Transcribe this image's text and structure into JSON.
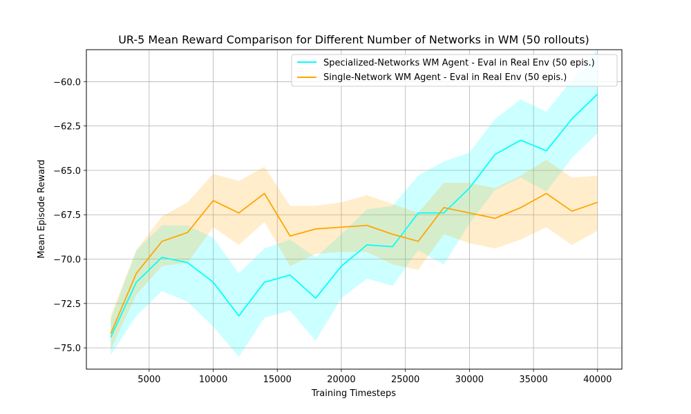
{
  "chart_data": {
    "type": "line",
    "title": "UR-5 Mean Reward Comparison for Different Number of Networks in WM (50 rollouts)",
    "xlabel": "Training Timesteps",
    "ylabel": "Mean Episode Reward",
    "xlim": [
      100,
      41900
    ],
    "ylim": [
      -76.2,
      -58.2
    ],
    "xticks": [
      5000,
      10000,
      15000,
      20000,
      25000,
      30000,
      35000,
      40000
    ],
    "yticks": [
      -75.0,
      -72.5,
      -70.0,
      -67.5,
      -65.0,
      -62.5,
      -60.0
    ],
    "grid": true,
    "legend_position": "top-right",
    "x": [
      2000,
      4000,
      6000,
      8000,
      10000,
      12000,
      14000,
      16000,
      18000,
      20000,
      22000,
      24000,
      26000,
      28000,
      30000,
      32000,
      34000,
      36000,
      38000,
      40000
    ],
    "series": [
      {
        "name": "Specialized-Networks WM Agent - Eval in Real Env (50 epis.)",
        "color": "#00ffff",
        "fill_color": "#00ffff",
        "values": [
          -74.4,
          -71.3,
          -69.9,
          -70.2,
          -71.3,
          -73.2,
          -71.3,
          -70.9,
          -72.2,
          -70.4,
          -69.2,
          -69.3,
          -67.4,
          -67.4,
          -66.0,
          -64.1,
          -63.3,
          -63.9,
          -62.1,
          -60.7
        ],
        "lower": [
          -75.4,
          -73.2,
          -71.8,
          -72.4,
          -73.8,
          -75.5,
          -73.3,
          -72.9,
          -74.6,
          -72.2,
          -71.1,
          -71.5,
          -69.5,
          -70.3,
          -68.0,
          -66.1,
          -65.4,
          -66.2,
          -64.3,
          -62.9
        ],
        "upper": [
          -73.4,
          -69.5,
          -68.1,
          -68.1,
          -68.8,
          -70.8,
          -69.4,
          -68.9,
          -69.9,
          -68.6,
          -67.2,
          -67.0,
          -65.3,
          -64.5,
          -64.0,
          -62.1,
          -61.0,
          -61.7,
          -59.9,
          -58.2
        ]
      },
      {
        "name": "Single-Network WM Agent - Eval in Real Env (50 epis.)",
        "color": "#ffa500",
        "fill_color": "#ffa500",
        "values": [
          -74.2,
          -70.8,
          -69.0,
          -68.5,
          -66.7,
          -67.4,
          -66.3,
          -68.7,
          -68.3,
          -68.2,
          -68.1,
          -68.6,
          -69.0,
          -67.1,
          -67.4,
          -67.7,
          -67.1,
          -66.3,
          -67.3,
          -66.8
        ],
        "lower": [
          -75.1,
          -72.0,
          -70.4,
          -70.2,
          -68.2,
          -69.2,
          -67.9,
          -70.4,
          -69.7,
          -69.6,
          -69.6,
          -70.3,
          -70.6,
          -68.6,
          -69.1,
          -69.4,
          -68.9,
          -68.2,
          -69.2,
          -68.4
        ],
        "upper": [
          -73.2,
          -69.5,
          -67.6,
          -66.8,
          -65.2,
          -65.6,
          -64.8,
          -67.0,
          -67.0,
          -66.8,
          -66.4,
          -66.9,
          -67.4,
          -65.7,
          -65.7,
          -66.0,
          -65.3,
          -64.4,
          -65.4,
          -65.3
        ]
      }
    ]
  }
}
